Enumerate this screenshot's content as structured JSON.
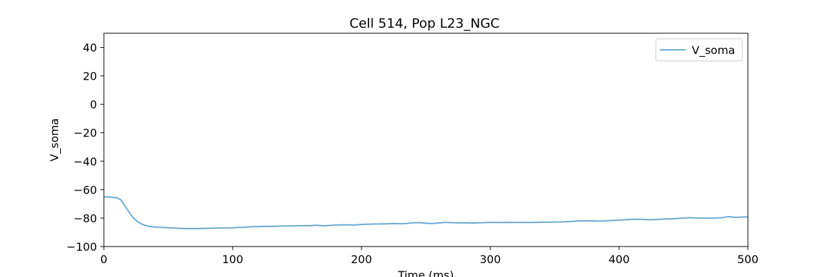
{
  "chart_data": {
    "type": "line",
    "title": "Cell 514, Pop L23_NGC",
    "xlabel": "Time (ms)",
    "ylabel": "V_soma",
    "xlim": [
      0,
      500
    ],
    "ylim": [
      -100,
      50
    ],
    "xticks": [
      0,
      100,
      200,
      300,
      400,
      500
    ],
    "yticks": [
      -100,
      -80,
      -60,
      -40,
      -20,
      0,
      20,
      40
    ],
    "xtick_labels": [
      "0",
      "100",
      "200",
      "300",
      "400",
      "500"
    ],
    "ytick_labels": [
      "−100",
      "−80",
      "−60",
      "−40",
      "−20",
      "0",
      "20",
      "40"
    ],
    "grid": false,
    "legend_position": "top-right",
    "series": [
      {
        "name": "V_soma",
        "color": "#6aaad6",
        "x": [
          0,
          5,
          10,
          13,
          16,
          19,
          22,
          26,
          30,
          35,
          40,
          50,
          60,
          70,
          80,
          90,
          100,
          105,
          110,
          115,
          120,
          125,
          130,
          135,
          140,
          145,
          150,
          155,
          160,
          165,
          170,
          175,
          180,
          185,
          190,
          195,
          200,
          205,
          210,
          215,
          220,
          225,
          230,
          235,
          240,
          245,
          250,
          255,
          260,
          265,
          270,
          275,
          280,
          285,
          290,
          295,
          300,
          305,
          310,
          315,
          320,
          325,
          330,
          335,
          340,
          345,
          350,
          355,
          360,
          365,
          370,
          375,
          380,
          385,
          390,
          395,
          400,
          405,
          410,
          415,
          420,
          425,
          430,
          435,
          440,
          445,
          450,
          455,
          460,
          465,
          470,
          475,
          480,
          485,
          490,
          495,
          500
        ],
        "y": [
          -65,
          -65.2,
          -65.8,
          -67,
          -71,
          -75,
          -79,
          -82.5,
          -84.5,
          -85.8,
          -86.3,
          -86.8,
          -87.3,
          -87.4,
          -87.2,
          -87.0,
          -86.9,
          -86.5,
          -86.4,
          -86.0,
          -86.0,
          -85.8,
          -85.8,
          -85.7,
          -85.5,
          -85.6,
          -85.4,
          -85.3,
          -85.3,
          -85.0,
          -85.4,
          -85.2,
          -84.9,
          -84.7,
          -84.8,
          -84.9,
          -84.4,
          -84.3,
          -84.2,
          -84.1,
          -84.0,
          -83.8,
          -84.0,
          -83.8,
          -83.3,
          -83.2,
          -83.6,
          -83.8,
          -83.4,
          -83.0,
          -83.2,
          -83.4,
          -83.3,
          -83.5,
          -83.4,
          -83.2,
          -83.0,
          -83.1,
          -83.1,
          -83.0,
          -83.1,
          -83.0,
          -83.1,
          -83.0,
          -82.9,
          -82.9,
          -82.8,
          -82.7,
          -82.5,
          -82.2,
          -81.9,
          -82.0,
          -82.0,
          -82.1,
          -82.0,
          -81.6,
          -81.5,
          -81.1,
          -80.9,
          -80.9,
          -81.0,
          -81.2,
          -80.9,
          -80.7,
          -80.6,
          -80.3,
          -80.0,
          -79.7,
          -79.9,
          -80.0,
          -80.1,
          -79.9,
          -79.7,
          -79.0,
          -79.5,
          -79.3,
          -79.2
        ]
      }
    ]
  }
}
